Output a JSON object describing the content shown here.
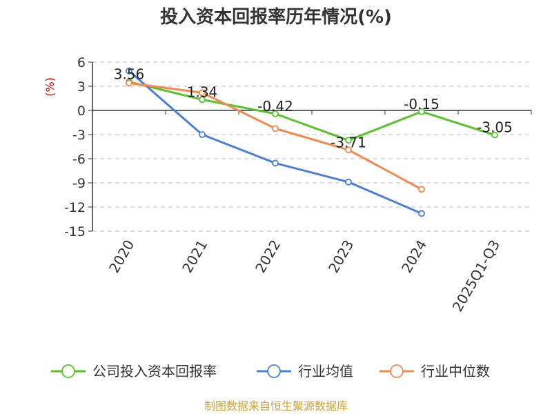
{
  "chart_data": {
    "type": "line",
    "title": "投入资本回报率历年情况(%)",
    "ylabel": "(%)",
    "xlabel": "",
    "categories": [
      "2020",
      "2021",
      "2022",
      "2023",
      "2024",
      "2025Q1-Q3"
    ],
    "yticks": [
      6,
      3,
      0,
      -3,
      -6,
      -9,
      -12,
      -15
    ],
    "ylim": [
      -15,
      6
    ],
    "grid": true,
    "legend_position": "bottom",
    "series": [
      {
        "name": "公司投入资本回报率",
        "color": "#58C22A",
        "values": [
          3.56,
          1.34,
          -0.42,
          -3.71,
          -0.15,
          -3.05
        ],
        "labels": [
          "3.56",
          "1.34",
          "-0.42",
          "-3.71",
          "-0.15",
          "-3.05"
        ]
      },
      {
        "name": "行业均值",
        "color": "#4A7FD9",
        "values": [
          4.9,
          -3.0,
          -6.55,
          -8.9,
          -12.8,
          null
        ]
      },
      {
        "name": "行业中位数",
        "color": "#F2894E",
        "values": [
          3.4,
          2.2,
          -2.25,
          -4.9,
          -9.8,
          null
        ]
      }
    ],
    "source": "制图数据来自恒生聚源数据库",
    "colors": {
      "axis": "#333333",
      "grid": "#bbbbbb",
      "unit": "#cc0000",
      "source": "#c9a23a"
    }
  }
}
